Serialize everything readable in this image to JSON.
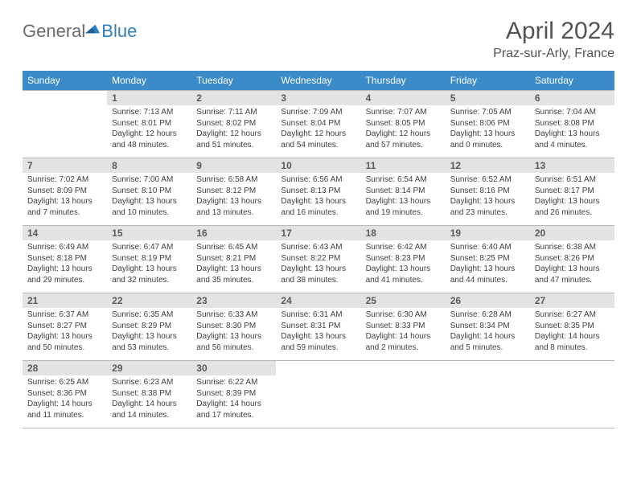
{
  "logo": {
    "word1": "General",
    "word2": "Blue"
  },
  "title": "April 2024",
  "location": "Praz-sur-Arly, France",
  "colors": {
    "header_bg": "#3b8bc9",
    "header_text": "#ffffff",
    "daynum_bg": "#e3e3e3",
    "daynum_text": "#5a5a5a",
    "body_text": "#3f3f3f",
    "title_text": "#535353",
    "logo_gray": "#6a6a6a",
    "logo_blue": "#2f7fbf",
    "border": "#b8b8b8"
  },
  "weekdays": [
    "Sunday",
    "Monday",
    "Tuesday",
    "Wednesday",
    "Thursday",
    "Friday",
    "Saturday"
  ],
  "weeks": [
    [
      {
        "day": "",
        "sunrise": "",
        "sunset": "",
        "daylight": ""
      },
      {
        "day": "1",
        "sunrise": "Sunrise: 7:13 AM",
        "sunset": "Sunset: 8:01 PM",
        "daylight": "Daylight: 12 hours and 48 minutes."
      },
      {
        "day": "2",
        "sunrise": "Sunrise: 7:11 AM",
        "sunset": "Sunset: 8:02 PM",
        "daylight": "Daylight: 12 hours and 51 minutes."
      },
      {
        "day": "3",
        "sunrise": "Sunrise: 7:09 AM",
        "sunset": "Sunset: 8:04 PM",
        "daylight": "Daylight: 12 hours and 54 minutes."
      },
      {
        "day": "4",
        "sunrise": "Sunrise: 7:07 AM",
        "sunset": "Sunset: 8:05 PM",
        "daylight": "Daylight: 12 hours and 57 minutes."
      },
      {
        "day": "5",
        "sunrise": "Sunrise: 7:05 AM",
        "sunset": "Sunset: 8:06 PM",
        "daylight": "Daylight: 13 hours and 0 minutes."
      },
      {
        "day": "6",
        "sunrise": "Sunrise: 7:04 AM",
        "sunset": "Sunset: 8:08 PM",
        "daylight": "Daylight: 13 hours and 4 minutes."
      }
    ],
    [
      {
        "day": "7",
        "sunrise": "Sunrise: 7:02 AM",
        "sunset": "Sunset: 8:09 PM",
        "daylight": "Daylight: 13 hours and 7 minutes."
      },
      {
        "day": "8",
        "sunrise": "Sunrise: 7:00 AM",
        "sunset": "Sunset: 8:10 PM",
        "daylight": "Daylight: 13 hours and 10 minutes."
      },
      {
        "day": "9",
        "sunrise": "Sunrise: 6:58 AM",
        "sunset": "Sunset: 8:12 PM",
        "daylight": "Daylight: 13 hours and 13 minutes."
      },
      {
        "day": "10",
        "sunrise": "Sunrise: 6:56 AM",
        "sunset": "Sunset: 8:13 PM",
        "daylight": "Daylight: 13 hours and 16 minutes."
      },
      {
        "day": "11",
        "sunrise": "Sunrise: 6:54 AM",
        "sunset": "Sunset: 8:14 PM",
        "daylight": "Daylight: 13 hours and 19 minutes."
      },
      {
        "day": "12",
        "sunrise": "Sunrise: 6:52 AM",
        "sunset": "Sunset: 8:16 PM",
        "daylight": "Daylight: 13 hours and 23 minutes."
      },
      {
        "day": "13",
        "sunrise": "Sunrise: 6:51 AM",
        "sunset": "Sunset: 8:17 PM",
        "daylight": "Daylight: 13 hours and 26 minutes."
      }
    ],
    [
      {
        "day": "14",
        "sunrise": "Sunrise: 6:49 AM",
        "sunset": "Sunset: 8:18 PM",
        "daylight": "Daylight: 13 hours and 29 minutes."
      },
      {
        "day": "15",
        "sunrise": "Sunrise: 6:47 AM",
        "sunset": "Sunset: 8:19 PM",
        "daylight": "Daylight: 13 hours and 32 minutes."
      },
      {
        "day": "16",
        "sunrise": "Sunrise: 6:45 AM",
        "sunset": "Sunset: 8:21 PM",
        "daylight": "Daylight: 13 hours and 35 minutes."
      },
      {
        "day": "17",
        "sunrise": "Sunrise: 6:43 AM",
        "sunset": "Sunset: 8:22 PM",
        "daylight": "Daylight: 13 hours and 38 minutes."
      },
      {
        "day": "18",
        "sunrise": "Sunrise: 6:42 AM",
        "sunset": "Sunset: 8:23 PM",
        "daylight": "Daylight: 13 hours and 41 minutes."
      },
      {
        "day": "19",
        "sunrise": "Sunrise: 6:40 AM",
        "sunset": "Sunset: 8:25 PM",
        "daylight": "Daylight: 13 hours and 44 minutes."
      },
      {
        "day": "20",
        "sunrise": "Sunrise: 6:38 AM",
        "sunset": "Sunset: 8:26 PM",
        "daylight": "Daylight: 13 hours and 47 minutes."
      }
    ],
    [
      {
        "day": "21",
        "sunrise": "Sunrise: 6:37 AM",
        "sunset": "Sunset: 8:27 PM",
        "daylight": "Daylight: 13 hours and 50 minutes."
      },
      {
        "day": "22",
        "sunrise": "Sunrise: 6:35 AM",
        "sunset": "Sunset: 8:29 PM",
        "daylight": "Daylight: 13 hours and 53 minutes."
      },
      {
        "day": "23",
        "sunrise": "Sunrise: 6:33 AM",
        "sunset": "Sunset: 8:30 PM",
        "daylight": "Daylight: 13 hours and 56 minutes."
      },
      {
        "day": "24",
        "sunrise": "Sunrise: 6:31 AM",
        "sunset": "Sunset: 8:31 PM",
        "daylight": "Daylight: 13 hours and 59 minutes."
      },
      {
        "day": "25",
        "sunrise": "Sunrise: 6:30 AM",
        "sunset": "Sunset: 8:33 PM",
        "daylight": "Daylight: 14 hours and 2 minutes."
      },
      {
        "day": "26",
        "sunrise": "Sunrise: 6:28 AM",
        "sunset": "Sunset: 8:34 PM",
        "daylight": "Daylight: 14 hours and 5 minutes."
      },
      {
        "day": "27",
        "sunrise": "Sunrise: 6:27 AM",
        "sunset": "Sunset: 8:35 PM",
        "daylight": "Daylight: 14 hours and 8 minutes."
      }
    ],
    [
      {
        "day": "28",
        "sunrise": "Sunrise: 6:25 AM",
        "sunset": "Sunset: 8:36 PM",
        "daylight": "Daylight: 14 hours and 11 minutes."
      },
      {
        "day": "29",
        "sunrise": "Sunrise: 6:23 AM",
        "sunset": "Sunset: 8:38 PM",
        "daylight": "Daylight: 14 hours and 14 minutes."
      },
      {
        "day": "30",
        "sunrise": "Sunrise: 6:22 AM",
        "sunset": "Sunset: 8:39 PM",
        "daylight": "Daylight: 14 hours and 17 minutes."
      },
      {
        "day": "",
        "sunrise": "",
        "sunset": "",
        "daylight": ""
      },
      {
        "day": "",
        "sunrise": "",
        "sunset": "",
        "daylight": ""
      },
      {
        "day": "",
        "sunrise": "",
        "sunset": "",
        "daylight": ""
      },
      {
        "day": "",
        "sunrise": "",
        "sunset": "",
        "daylight": ""
      }
    ]
  ]
}
